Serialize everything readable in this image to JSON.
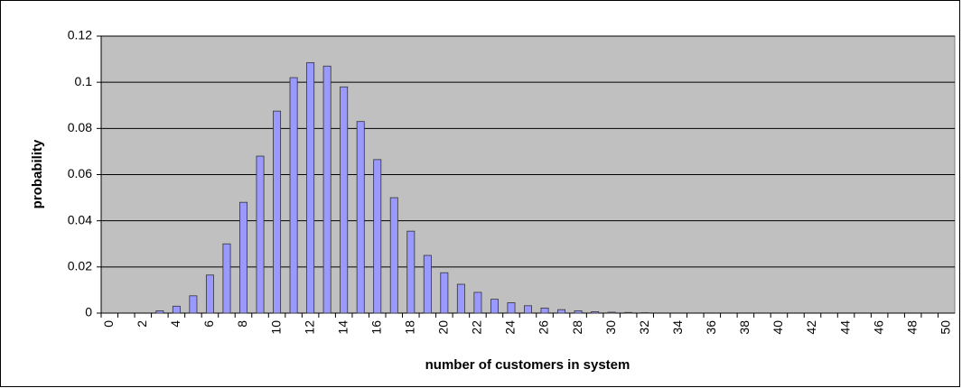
{
  "chart_data": {
    "type": "bar",
    "x_label": "number of customers in system",
    "y_label": "probability",
    "categories": [
      "0",
      null,
      "2",
      null,
      "4",
      null,
      "6",
      null,
      "8",
      null,
      "10",
      null,
      "12",
      null,
      "14",
      null,
      "16",
      null,
      "18",
      null,
      "20",
      null,
      "22",
      null,
      "24",
      null,
      "26",
      null,
      "28",
      null,
      "30",
      null,
      "32",
      null,
      "34",
      null,
      "36",
      null,
      "38",
      null,
      "40",
      null,
      "42",
      null,
      "44",
      null,
      "46",
      null,
      "48",
      null,
      "50"
    ],
    "values": [
      0,
      0,
      0,
      0.001,
      0.003,
      0.0075,
      0.0165,
      0.03,
      0.048,
      0.068,
      0.0875,
      0.102,
      0.1085,
      0.107,
      0.098,
      0.083,
      0.0665,
      0.05,
      0.0355,
      0.025,
      0.0175,
      0.0125,
      0.009,
      0.006,
      0.0045,
      0.0032,
      0.0022,
      0.0015,
      0.001,
      0.0006,
      0.0004,
      0.0003,
      0.0002,
      0,
      0,
      0,
      0,
      0,
      0,
      0,
      0,
      0,
      0,
      0,
      0,
      0,
      0,
      0,
      0,
      0,
      0
    ],
    "color": "#9999ff",
    "ylim": [
      0,
      0.12
    ],
    "yticks": [
      0,
      0.02,
      0.04,
      0.06,
      0.08,
      0.1,
      0.12
    ],
    "grid": true
  }
}
